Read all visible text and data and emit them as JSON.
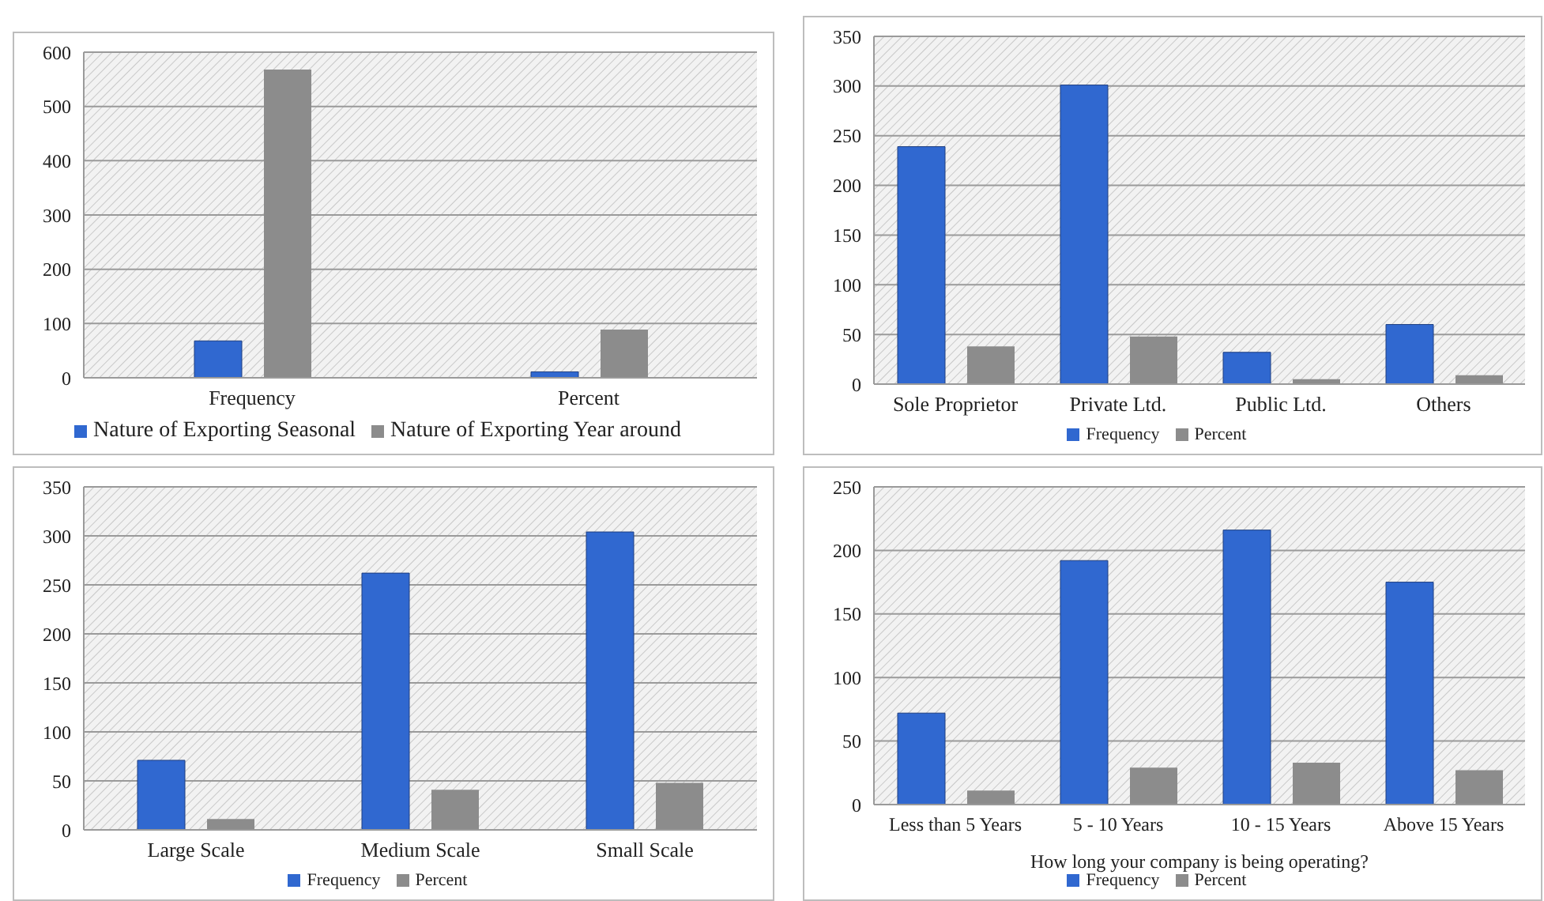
{
  "chart_data": [
    {
      "type": "bar",
      "categories": [
        "Frequency",
        "Percent"
      ],
      "series": [
        {
          "name": "Nature of Exporting Seasonal",
          "color": "#3068d0",
          "values": [
            68,
            11
          ]
        },
        {
          "name": "Nature of Exporting Year around",
          "color": "#8c8c8c",
          "values": [
            568,
            89
          ]
        }
      ],
      "ylim": [
        0,
        600
      ],
      "yticks": [
        0,
        100,
        200,
        300,
        400,
        500,
        600
      ],
      "grid": "y",
      "legend": "bottom"
    },
    {
      "type": "bar",
      "categories": [
        "Sole Proprietor",
        "Private Ltd.",
        "Public Ltd.",
        "Others"
      ],
      "series": [
        {
          "name": "Frequency",
          "color": "#3068d0",
          "values": [
            239,
            301,
            32,
            60
          ]
        },
        {
          "name": "Percent",
          "color": "#8c8c8c",
          "values": [
            38,
            48,
            5,
            9
          ]
        }
      ],
      "ylim": [
        0,
        350
      ],
      "yticks": [
        0,
        50,
        100,
        150,
        200,
        250,
        300,
        350
      ],
      "grid": "y",
      "legend": "bottom"
    },
    {
      "type": "bar",
      "categories": [
        "Large Scale",
        "Medium Scale",
        "Small Scale"
      ],
      "series": [
        {
          "name": "Frequency",
          "color": "#3068d0",
          "values": [
            71,
            262,
            304
          ]
        },
        {
          "name": "Percent",
          "color": "#8c8c8c",
          "values": [
            11,
            41,
            48
          ]
        }
      ],
      "ylim": [
        0,
        350
      ],
      "yticks": [
        0,
        50,
        100,
        150,
        200,
        250,
        300,
        350
      ],
      "grid": "y",
      "legend": "bottom"
    },
    {
      "type": "bar",
      "categories": [
        "Less than 5 Years",
        "5 - 10 Years",
        "10 - 15 Years",
        "Above 15 Years"
      ],
      "xlabel": "How long your company is being operating?",
      "series": [
        {
          "name": "Frequency",
          "color": "#3068d0",
          "values": [
            72,
            192,
            216,
            175
          ]
        },
        {
          "name": "Percent",
          "color": "#8c8c8c",
          "values": [
            11,
            29,
            33,
            27
          ]
        }
      ],
      "ylim": [
        0,
        250
      ],
      "yticks": [
        0,
        50,
        100,
        150,
        200,
        250
      ],
      "grid": "y",
      "legend": "bottom"
    }
  ]
}
